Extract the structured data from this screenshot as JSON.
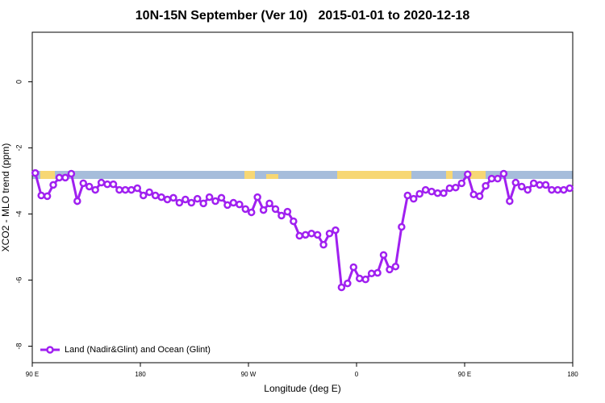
{
  "chart_data": {
    "type": "line",
    "title": "10N-15N September (Ver 10)   2015-01-01 to 2020-12-18",
    "x_label": "Longitude (deg E)",
    "y_label": "XCO2 - MLO trend (ppm)",
    "xlim": [
      90,
      540
    ],
    "xticks": [
      {
        "value": 90,
        "label": "90 E"
      },
      180,
      {
        "value": 270,
        "label": "90 W"
      },
      {
        "value": 360,
        "label": "0"
      },
      {
        "value": 450,
        "label": "90 E"
      },
      {
        "value": 540,
        "label": "180"
      }
    ],
    "ylim": [
      -8.5,
      1.5
    ],
    "yticks": [
      0,
      -2,
      -4,
      -6,
      -8
    ],
    "legend": "bottom-left",
    "x": [
      92.5,
      97.5,
      102.5,
      107.5,
      112.5,
      117.5,
      122.5,
      127.5,
      132.5,
      137.5,
      142.5,
      147.5,
      152.5,
      157.5,
      162.5,
      167.5,
      172.5,
      177.5,
      182.5,
      187.5,
      192.5,
      197.5,
      202.5,
      207.5,
      212.5,
      217.5,
      222.5,
      227.5,
      232.5,
      237.5,
      242.5,
      247.5,
      252.5,
      257.5,
      262.5,
      267.5,
      272.5,
      277.5,
      282.5,
      287.5,
      292.5,
      297.5,
      302.5,
      307.5,
      312.5,
      317.5,
      322.5,
      327.5,
      332.5,
      337.5,
      342.5,
      347.5,
      352.5,
      357.5,
      362.5,
      367.5,
      372.5,
      377.5,
      382.5,
      387.5,
      392.5,
      397.5,
      402.5,
      407.5,
      412.5,
      417.5,
      422.5,
      427.5,
      432.5,
      437.5,
      442.5,
      447.5,
      452.5,
      457.5,
      462.5,
      467.5,
      472.5,
      477.5,
      482.5,
      487.5,
      492.5,
      497.5,
      502.5,
      507.5,
      512.5,
      517.5,
      522.5,
      527.5,
      532.5,
      537.5
    ],
    "series": [
      {
        "name": "Land (Nadir&Glint) and Ocean (Glint)",
        "color": "#a020f0",
        "values": [
          -2.76,
          -3.44,
          -3.46,
          -3.12,
          -2.9,
          -2.9,
          -2.78,
          -3.61,
          -3.07,
          -3.17,
          -3.27,
          -3.05,
          -3.1,
          -3.1,
          -3.27,
          -3.27,
          -3.27,
          -3.22,
          -3.44,
          -3.34,
          -3.44,
          -3.49,
          -3.56,
          -3.51,
          -3.66,
          -3.56,
          -3.66,
          -3.54,
          -3.68,
          -3.49,
          -3.61,
          -3.51,
          -3.73,
          -3.66,
          -3.71,
          -3.85,
          -3.95,
          -3.49,
          -3.88,
          -3.68,
          -3.85,
          -4.05,
          -3.93,
          -4.22,
          -4.66,
          -4.63,
          -4.59,
          -4.63,
          -4.93,
          -4.59,
          -4.49,
          -6.22,
          -6.1,
          -5.61,
          -5.95,
          -5.98,
          -5.8,
          -5.78,
          -5.24,
          -5.68,
          -5.59,
          -4.39,
          -3.44,
          -3.54,
          -3.39,
          -3.27,
          -3.32,
          -3.37,
          -3.37,
          -3.22,
          -3.2,
          -3.07,
          -2.8,
          -3.41,
          -3.46,
          -3.15,
          -2.93,
          -2.93,
          -2.78,
          -3.61,
          -3.05,
          -3.17,
          -3.27,
          -3.07,
          -3.12,
          -3.12,
          -3.27,
          -3.27,
          -3.27,
          -3.22
        ]
      }
    ]
  }
}
